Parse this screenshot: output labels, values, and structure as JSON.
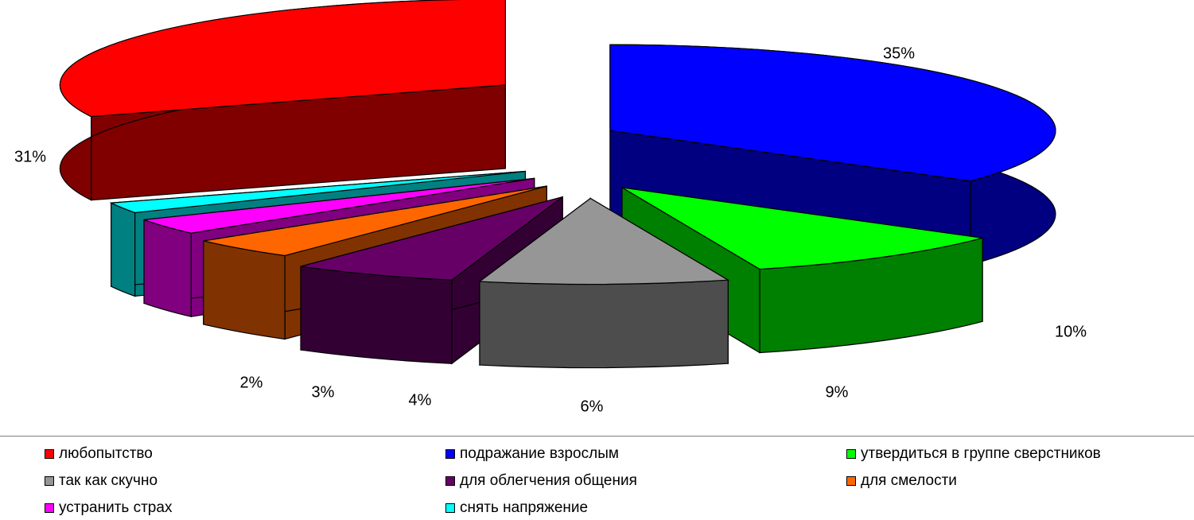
{
  "chart_data": {
    "type": "pie",
    "title": "",
    "legend_position": "bottom",
    "unit": "%",
    "slices": [
      {
        "name": "любопытство",
        "value": 31,
        "label": "31%",
        "top": "#ff0000",
        "side": "#800000"
      },
      {
        "name": "подражание взрослым",
        "value": 35,
        "label": "35%",
        "top": "#0000ff",
        "side": "#000080"
      },
      {
        "name": "утвердиться в группе сверстников",
        "value": 10,
        "label": "10%",
        "top": "#00ff00",
        "side": "#008000"
      },
      {
        "name": "так как скучно",
        "value": 9,
        "label": "9%",
        "top": "#969696",
        "side": "#4d4d4d"
      },
      {
        "name": "для облегчения общения",
        "value": 6,
        "label": "6%",
        "top": "#660066",
        "side": "#330033"
      },
      {
        "name": "для смелости",
        "value": 4,
        "label": "4%",
        "top": "#ff6600",
        "side": "#803300"
      },
      {
        "name": "устранить страх",
        "value": 3,
        "label": "3%",
        "top": "#ff00ff",
        "side": "#800080"
      },
      {
        "name": "снять напряжение",
        "value": 2,
        "label": "2%",
        "top": "#00ffff",
        "side": "#008080"
      }
    ]
  }
}
